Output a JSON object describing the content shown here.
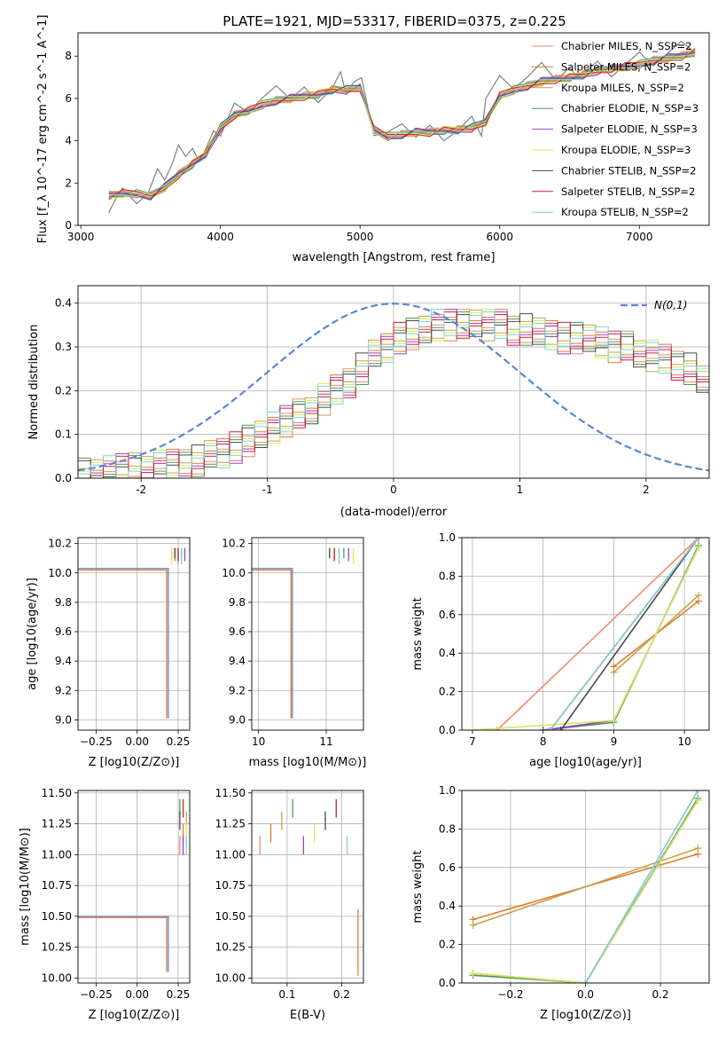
{
  "figure": {
    "title": "PLATE=1921, MJD=53317, FIBERID=0375, z=0.225"
  },
  "series_styles": [
    {
      "name": "Chabrier MILES",
      "nssp": "2",
      "color": "#ef8c6b"
    },
    {
      "name": "Salpeter MILES",
      "nssp": "2",
      "color": "#e07b2f"
    },
    {
      "name": "Kroupa MILES",
      "nssp": "2",
      "color": "#c8a24a"
    },
    {
      "name": "Chabrier ELODIE",
      "nssp": "3",
      "color": "#4c9a58"
    },
    {
      "name": "Salpeter ELODIE",
      "nssp": "3",
      "color": "#9b3fc9"
    },
    {
      "name": "Kroupa ELODIE",
      "nssp": "3",
      "color": "#d8ea5a"
    },
    {
      "name": "Chabrier STELIB",
      "nssp": "2",
      "color": "#4a4a4a"
    },
    {
      "name": "Salpeter STELIB",
      "nssp": "2",
      "color": "#c8222a"
    },
    {
      "name": "Kroupa STELIB",
      "nssp": "2",
      "color": "#7fd1dc"
    }
  ],
  "chart_data": [
    {
      "id": "spectrum",
      "type": "line",
      "title": "PLATE=1921, MJD=53317, FIBERID=0375, z=0.225",
      "xlabel": "wavelength [Angstrom, rest frame]",
      "ylabel": "Flux [f_λ 10^-17 erg cm^-2 s^-1 A^-1]",
      "xlim": [
        2980,
        7500
      ],
      "ylim": [
        0,
        9.1
      ],
      "xticks": [
        3000,
        4000,
        5000,
        6000,
        7000
      ],
      "yticks": [
        0,
        2,
        4,
        6,
        8
      ],
      "grid": false,
      "legend": "right",
      "data_color": "#808080",
      "data_x": [
        3200,
        3260,
        3300,
        3400,
        3480,
        3550,
        3600,
        3650,
        3700,
        3750,
        3800,
        3850,
        3900,
        3950,
        4000,
        4050,
        4100,
        4200,
        4300,
        4400,
        4500,
        4600,
        4700,
        4800,
        4860,
        4900,
        4960,
        5010,
        5100,
        5200,
        5300,
        5400,
        5500,
        5600,
        5700,
        5800,
        5870,
        5900,
        6000,
        6100,
        6200,
        6300,
        6400,
        6500,
        6563,
        6600,
        6700,
        6800,
        6900,
        7000,
        7100,
        7200,
        7300,
        7400
      ],
      "data_y": [
        1.2,
        1.5,
        1.4,
        1.5,
        1.5,
        2.2,
        2.5,
        2.7,
        3.2,
        3.5,
        3.4,
        3.6,
        3.8,
        4.1,
        4.7,
        5.0,
        5.3,
        5.7,
        5.9,
        6.0,
        6.2,
        6.3,
        6.4,
        6.6,
        6.9,
        6.7,
        6.8,
        6.5,
        4.6,
        4.3,
        4.2,
        4.4,
        4.5,
        4.6,
        4.6,
        4.8,
        4.7,
        6.0,
        6.6,
        6.8,
        6.9,
        7.1,
        7.1,
        7.2,
        7.6,
        7.3,
        7.4,
        7.5,
        7.6,
        7.7,
        7.9,
        8.0,
        8.1,
        8.4
      ],
      "model_x": [
        3200,
        3300,
        3400,
        3500,
        3600,
        3700,
        3800,
        3900,
        4000,
        4100,
        4200,
        4300,
        4400,
        4500,
        4600,
        4700,
        4800,
        4900,
        5000,
        5100,
        5200,
        5300,
        5400,
        5500,
        5600,
        5700,
        5800,
        5900,
        6000,
        6100,
        6200,
        6300,
        6400,
        6500,
        6600,
        6700,
        6800,
        6900,
        7000,
        7100,
        7200,
        7300,
        7400
      ],
      "model_y": [
        1.4,
        1.5,
        1.5,
        1.4,
        1.8,
        2.4,
        2.9,
        3.4,
        4.6,
        5.2,
        5.4,
        5.7,
        5.9,
        6.0,
        6.1,
        6.2,
        6.4,
        6.4,
        6.5,
        4.5,
        4.2,
        4.3,
        4.4,
        4.4,
        4.5,
        4.5,
        4.6,
        4.9,
        6.1,
        6.4,
        6.6,
        6.8,
        6.9,
        7.0,
        7.1,
        7.3,
        7.4,
        7.5,
        7.6,
        7.8,
        7.9,
        8.0,
        8.2
      ],
      "series_names": [
        "Chabrier MILES, N_SSP=2",
        "Salpeter MILES, N_SSP=2",
        "Kroupa MILES, N_SSP=2",
        "Chabrier ELODIE, N_SSP=3",
        "Salpeter ELODIE, N_SSP=3",
        "Kroupa ELODIE, N_SSP=3",
        "Chabrier STELIB, N_SSP=2",
        "Salpeter STELIB, N_SSP=2",
        "Kroupa STELIB, N_SSP=2"
      ]
    },
    {
      "id": "residuals",
      "type": "line",
      "xlabel": "(data-model)/error",
      "ylabel": "Normed distribution",
      "xlim": [
        -2.5,
        2.5
      ],
      "ylim": [
        0,
        0.44
      ],
      "xticks": [
        -2,
        -1,
        0,
        1,
        2
      ],
      "yticks": [
        0.0,
        0.1,
        0.2,
        0.3,
        0.4
      ],
      "grid": true,
      "legend": "top-right",
      "gaussian_label": "N(0,1)",
      "gaussian_color": "#5b87d6",
      "bin_edges_start": -2.5,
      "bin_width": 0.1,
      "hist_base": [
        0.01,
        0.012,
        0.015,
        0.02,
        0.022,
        0.025,
        0.028,
        0.03,
        0.035,
        0.04,
        0.05,
        0.06,
        0.07,
        0.085,
        0.1,
        0.115,
        0.13,
        0.145,
        0.16,
        0.18,
        0.2,
        0.22,
        0.25,
        0.28,
        0.3,
        0.32,
        0.33,
        0.34,
        0.35,
        0.35,
        0.35,
        0.36,
        0.35,
        0.35,
        0.34,
        0.34,
        0.33,
        0.33,
        0.32,
        0.32,
        0.32,
        0.31,
        0.3,
        0.3,
        0.29,
        0.28,
        0.27,
        0.26,
        0.25,
        0.22
      ]
    },
    {
      "id": "age-vs-Z",
      "type": "scatter",
      "xlabel": "Z [log10(Z/Z⊙)]",
      "ylabel": "age [log10(age/yr)]",
      "xlim": [
        -0.36,
        0.32
      ],
      "ylim": [
        8.93,
        10.24
      ],
      "xticks": [
        -0.25,
        0.0,
        0.25
      ],
      "xticklabels": [
        "−0.25",
        "0.00",
        "0.25"
      ],
      "yticks": [
        9.0,
        9.2,
        9.4,
        9.6,
        9.8,
        10.0,
        10.2
      ],
      "yticklabels": [
        "9.0",
        "9.2",
        "9.4",
        "9.6",
        "9.8",
        "10.0",
        "10.2"
      ],
      "grid": true
    },
    {
      "id": "age-vs-mass",
      "type": "scatter",
      "xlabel": "mass [log10(M/M⊙)]",
      "xlim": [
        9.9,
        11.55
      ],
      "ylim": [
        8.93,
        10.24
      ],
      "xticks": [
        10,
        11
      ],
      "xticklabels": [
        "10",
        "11"
      ],
      "yticks": [
        9.0,
        9.2,
        9.4,
        9.6,
        9.8,
        10.0,
        10.2
      ],
      "yticklabels": [
        "9.0",
        "9.2",
        "9.4",
        "9.6",
        "9.8",
        "10.0",
        "10.2"
      ],
      "grid": true
    },
    {
      "id": "massweight-vs-age",
      "type": "line",
      "xlabel": "age [log10(age/yr)]",
      "ylabel": "mass weight",
      "xlim": [
        6.85,
        10.35
      ],
      "ylim": [
        0,
        1.0
      ],
      "xticks": [
        7,
        8,
        9,
        10
      ],
      "xticklabels": [
        "7",
        "8",
        "9",
        "10"
      ],
      "yticks": [
        0.0,
        0.2,
        0.4,
        0.6,
        0.8,
        1.0
      ],
      "yticklabels": [
        "0.0",
        "0.2",
        "0.4",
        "0.6",
        "0.8",
        "1.0"
      ],
      "grid": true,
      "series": [
        {
          "name": "Chabrier MILES",
          "x": [
            7.35,
            10.2
          ],
          "y": [
            0.0,
            1.0
          ]
        },
        {
          "name": "Salpeter MILES",
          "x": [
            9.0,
            10.2
          ],
          "y": [
            0.33,
            0.67
          ]
        },
        {
          "name": "Kroupa MILES",
          "x": [
            9.0,
            10.2
          ],
          "y": [
            0.3,
            0.7
          ]
        },
        {
          "name": "Chabrier ELODIE",
          "x": [
            8.0,
            9.0,
            10.2
          ],
          "y": [
            0.0,
            0.04,
            0.96
          ]
        },
        {
          "name": "Salpeter ELODIE",
          "x": [
            8.0,
            9.0,
            10.2
          ],
          "y": [
            0.0,
            0.05,
            0.95
          ]
        },
        {
          "name": "Kroupa ELODIE",
          "x": [
            7.0,
            9.0,
            10.2
          ],
          "y": [
            0.0,
            0.05,
            0.95
          ]
        },
        {
          "name": "Chabrier STELIB",
          "x": [
            8.25,
            10.2
          ],
          "y": [
            0.0,
            1.0
          ]
        },
        {
          "name": "Salpeter STELIB",
          "x": [
            8.1,
            10.2
          ],
          "y": [
            0.0,
            1.0
          ]
        },
        {
          "name": "Kroupa STELIB",
          "x": [
            8.1,
            10.2
          ],
          "y": [
            0.0,
            1.0
          ]
        }
      ]
    },
    {
      "id": "mass-vs-Z",
      "type": "scatter",
      "xlabel": "Z [log10(Z/Z⊙)]",
      "ylabel": "mass [log10(M/M⊙)]",
      "xlim": [
        -0.36,
        0.32
      ],
      "ylim": [
        9.96,
        11.52
      ],
      "xticks": [
        -0.25,
        0.0,
        0.25
      ],
      "xticklabels": [
        "−0.25",
        "0.00",
        "0.25"
      ],
      "yticks": [
        10.0,
        10.25,
        10.5,
        10.75,
        11.0,
        11.25,
        11.5
      ],
      "yticklabels": [
        "10.00",
        "10.25",
        "10.50",
        "10.75",
        "11.00",
        "11.25",
        "11.50"
      ],
      "grid": true
    },
    {
      "id": "mass-vs-EBV",
      "type": "scatter",
      "xlabel": "E(B-V)",
      "xlim": [
        0.035,
        0.24
      ],
      "ylim": [
        9.96,
        11.52
      ],
      "xticks": [
        0.1,
        0.2
      ],
      "xticklabels": [
        "0.1",
        "0.2"
      ],
      "yticks": [
        10.0,
        10.25,
        10.5,
        10.75,
        11.0,
        11.25,
        11.5
      ],
      "yticklabels": [
        "10.00",
        "10.25",
        "10.50",
        "10.75",
        "11.00",
        "11.25",
        "11.50"
      ],
      "grid": true
    },
    {
      "id": "massweight-vs-Z",
      "type": "line",
      "xlabel": "Z [log10(Z/Z⊙)]",
      "ylabel": "mass weight",
      "xlim": [
        -0.33,
        0.33
      ],
      "ylim": [
        0,
        1.0
      ],
      "xticks": [
        -0.2,
        0.0,
        0.2
      ],
      "xticklabels": [
        "−0.2",
        "0.0",
        "0.2"
      ],
      "yticks": [
        0.0,
        0.2,
        0.4,
        0.6,
        0.8,
        1.0
      ],
      "yticklabels": [
        "0.0",
        "0.2",
        "0.4",
        "0.6",
        "0.8",
        "1.0"
      ],
      "grid": true,
      "series": [
        {
          "name": "Salpeter MILES",
          "x": [
            -0.3,
            0.3
          ],
          "y": [
            0.33,
            0.67
          ]
        },
        {
          "name": "Kroupa MILES",
          "x": [
            -0.3,
            0.3
          ],
          "y": [
            0.3,
            0.7
          ]
        },
        {
          "name": "Chabrier ELODIE",
          "x": [
            -0.3,
            0.0,
            0.3
          ],
          "y": [
            0.04,
            0.0,
            0.96
          ]
        },
        {
          "name": "Salpeter ELODIE",
          "x": [
            -0.3,
            0.0,
            0.3
          ],
          "y": [
            0.05,
            0.0,
            0.95
          ]
        },
        {
          "name": "Kroupa ELODIE",
          "x": [
            -0.3,
            0.0,
            0.3
          ],
          "y": [
            0.05,
            0.0,
            0.95
          ]
        },
        {
          "name": "Chabrier MILES",
          "x": [
            0.0,
            0.3
          ],
          "y": [
            0.0,
            1.0
          ]
        },
        {
          "name": "Kroupa STELIB",
          "x": [
            0.0,
            0.3
          ],
          "y": [
            0.0,
            1.0
          ]
        }
      ]
    }
  ]
}
